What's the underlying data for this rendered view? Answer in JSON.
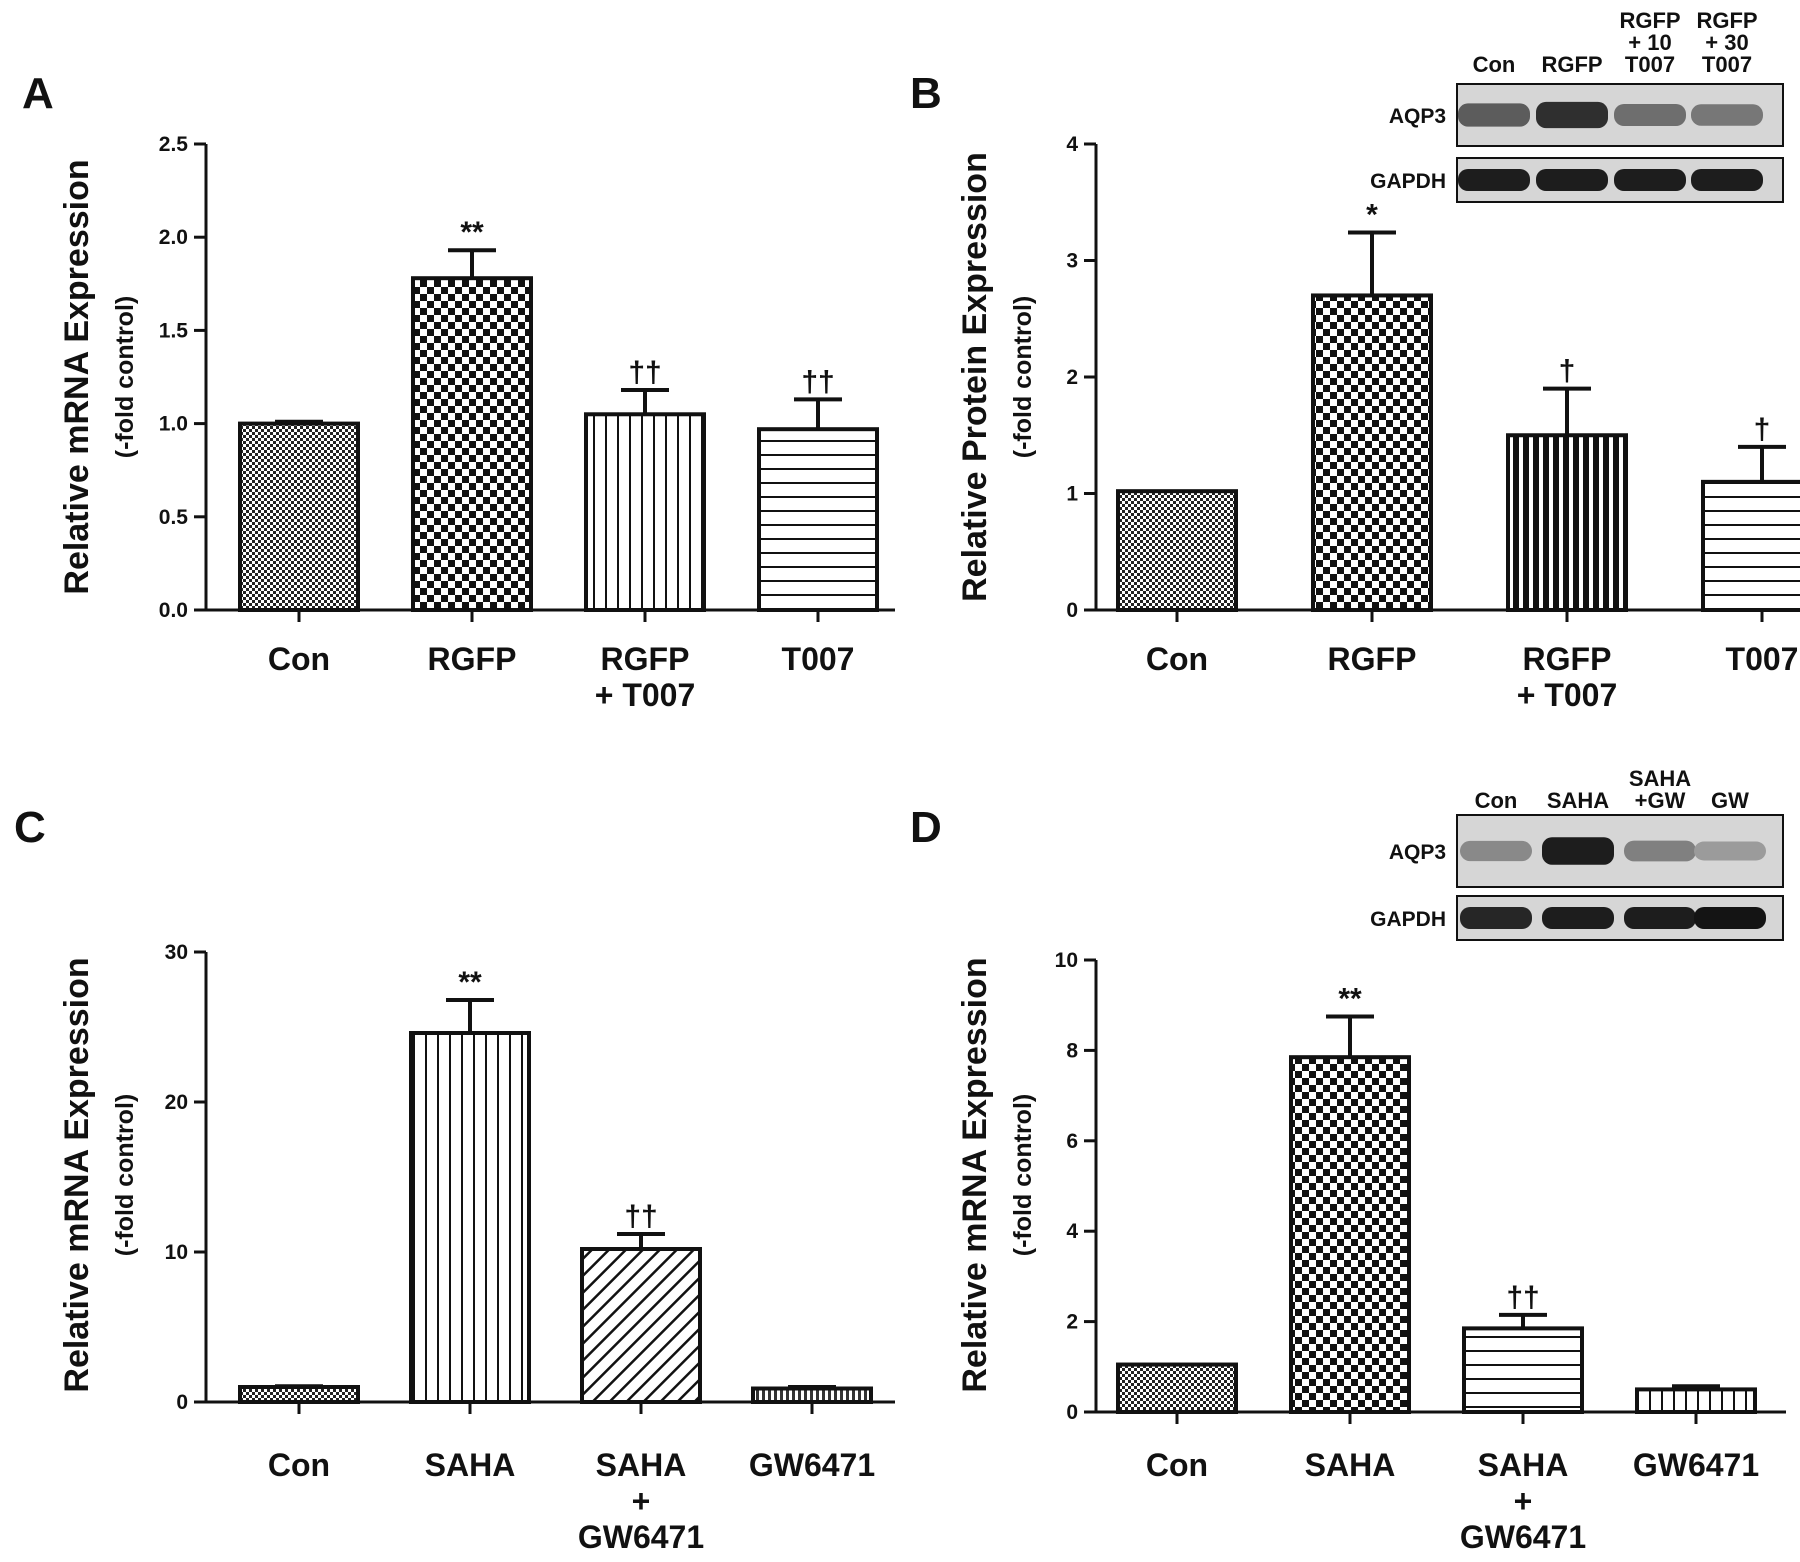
{
  "chart_data": [
    {
      "type": "bar",
      "panel": "A",
      "ylabel": "Relative mRNA Expression",
      "ylabel2": "(-fold control)",
      "ylim": [
        0,
        2.5
      ],
      "yticks": [
        "0.0",
        "0.5",
        "1.0",
        "1.5",
        "2.0",
        "2.5"
      ],
      "categories": [
        [
          "Con"
        ],
        [
          "RGFP"
        ],
        [
          "RGFP",
          "+ T007"
        ],
        [
          "T007"
        ]
      ],
      "values": [
        1.0,
        1.78,
        1.05,
        0.97
      ],
      "errors": [
        0.01,
        0.15,
        0.13,
        0.16
      ],
      "significance": [
        "",
        "**",
        "††",
        "††"
      ],
      "patterns": [
        "fine",
        "check",
        "vert",
        "horiz"
      ]
    },
    {
      "type": "bar",
      "panel": "B",
      "ylabel": "Relative Protein Expression",
      "ylabel2": "(-fold control)",
      "ylim": [
        0,
        4
      ],
      "yticks": [
        "0",
        "1",
        "2",
        "3",
        "4"
      ],
      "categories": [
        [
          "Con"
        ],
        [
          "RGFP"
        ],
        [
          "RGFP",
          "+ T007"
        ],
        [
          "T007"
        ]
      ],
      "values": [
        1.02,
        2.7,
        1.5,
        1.1
      ],
      "errors": [
        0.0,
        0.54,
        0.4,
        0.3
      ],
      "significance": [
        "",
        "*",
        "†",
        "†"
      ],
      "patterns": [
        "fine",
        "check",
        "vertbold",
        "horiz"
      ],
      "blot": {
        "lanes": [
          [
            "Con"
          ],
          [
            "RGFP"
          ],
          [
            "RGFP",
            "+ 10",
            "T007"
          ],
          [
            "RGFP",
            "+ 30",
            "T007"
          ]
        ],
        "rows": [
          {
            "label": "AQP3",
            "intensities": [
              0.6,
              0.85,
              0.5,
              0.45
            ]
          },
          {
            "label": "GAPDH",
            "intensities": [
              0.95,
              0.95,
              0.95,
              0.95
            ]
          }
        ]
      }
    },
    {
      "type": "bar",
      "panel": "C",
      "ylabel": "Relative mRNA Expression",
      "ylabel2": "(-fold control)",
      "ylim": [
        0,
        30
      ],
      "yticks": [
        "0",
        "10",
        "20",
        "30"
      ],
      "categories": [
        [
          "Con"
        ],
        [
          "SAHA"
        ],
        [
          "SAHA",
          "+",
          "GW6471"
        ],
        [
          "GW6471"
        ]
      ],
      "values": [
        1.0,
        24.6,
        10.2,
        0.9
      ],
      "errors": [
        0.05,
        2.2,
        1.0,
        0.1
      ],
      "significance": [
        "",
        "**",
        "††",
        ""
      ],
      "patterns": [
        "fine",
        "vert",
        "diag",
        "dots"
      ]
    },
    {
      "type": "bar",
      "panel": "D",
      "ylabel": "Relative mRNA Expression",
      "ylabel2": "(-fold control)",
      "ylim": [
        0,
        10
      ],
      "yticks": [
        "0",
        "2",
        "4",
        "6",
        "8",
        "10"
      ],
      "categories": [
        [
          "Con"
        ],
        [
          "SAHA"
        ],
        [
          "SAHA",
          "+",
          "GW6471"
        ],
        [
          "GW6471"
        ]
      ],
      "values": [
        1.05,
        7.85,
        1.85,
        0.5
      ],
      "errors": [
        0.0,
        0.9,
        0.3,
        0.07
      ],
      "significance": [
        "",
        "**",
        "††",
        ""
      ],
      "patterns": [
        "fine",
        "check",
        "horiz",
        "vert"
      ],
      "blot": {
        "lanes": [
          [
            "Con"
          ],
          [
            "SAHA"
          ],
          [
            "SAHA",
            "+GW"
          ],
          [
            "GW"
          ]
        ],
        "rows": [
          {
            "label": "AQP3",
            "intensities": [
              0.35,
              0.95,
              0.4,
              0.25
            ]
          },
          {
            "label": "GAPDH",
            "intensities": [
              0.9,
              0.95,
              0.95,
              1.0
            ]
          }
        ]
      }
    }
  ]
}
